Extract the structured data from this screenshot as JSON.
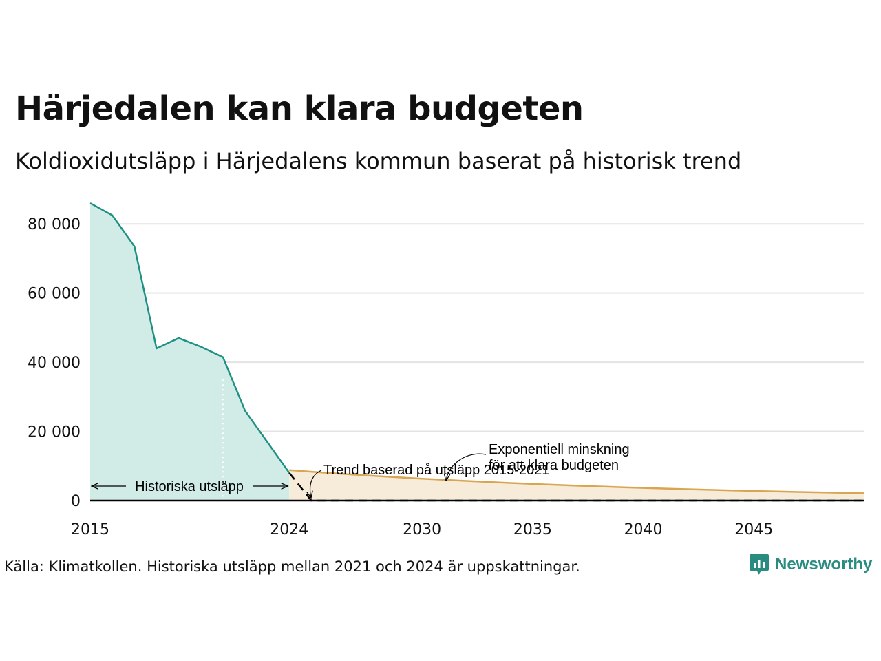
{
  "title": "Härjedalen kan klara budgeten",
  "subtitle": "Koldioxidutsläpp i Härjedalens kommun baserat på historisk trend",
  "source": "Källa: Klimatkollen. Historiska utsläpp mellan 2021 och 2024 är uppskattningar.",
  "brand": {
    "name": "Newsworthy",
    "icon": "newsworthy-logo-icon",
    "color": "#2a8c80"
  },
  "chart_data": {
    "type": "area",
    "xlim": [
      2015,
      2050
    ],
    "ylim": [
      0,
      90000
    ],
    "grid": true,
    "xticks": [
      {
        "value": 2015,
        "label": "2015"
      },
      {
        "value": 2024,
        "label": "2024"
      },
      {
        "value": 2030,
        "label": "2030"
      },
      {
        "value": 2035,
        "label": "2035"
      },
      {
        "value": 2040,
        "label": "2040"
      },
      {
        "value": 2045,
        "label": "2045"
      }
    ],
    "yticks": [
      {
        "value": 0,
        "label": "0"
      },
      {
        "value": 20000,
        "label": "20 000"
      },
      {
        "value": 40000,
        "label": "40 000"
      },
      {
        "value": 60000,
        "label": "60 000"
      },
      {
        "value": 80000,
        "label": "80 000"
      }
    ],
    "colors": {
      "historical_line": "#1f9084",
      "historical_fill": "#d1ebe6",
      "budget_line": "#d9a551",
      "budget_fill": "#f7ecda",
      "trend_line": "#000000",
      "grid": "#e3e3e3",
      "axis": "#000000",
      "divider": "#ffffff"
    },
    "series": [
      {
        "key": "historical",
        "x": [
          2015,
          2016,
          2017,
          2018,
          2019,
          2020,
          2021,
          2022,
          2023,
          2024
        ],
        "y": [
          86000,
          82500,
          73500,
          44000,
          47000,
          44500,
          41500,
          26000,
          17000,
          8000
        ]
      },
      {
        "key": "budget",
        "x": [
          2024,
          2025,
          2026,
          2027,
          2028,
          2029,
          2030,
          2031,
          2032,
          2033,
          2034,
          2035,
          2036,
          2037,
          2038,
          2039,
          2040,
          2041,
          2042,
          2043,
          2044,
          2045,
          2046,
          2047,
          2048,
          2049,
          2050
        ],
        "y": [
          8800,
          8330,
          7885,
          7465,
          7065,
          6690,
          6330,
          5995,
          5675,
          5370,
          5085,
          4810,
          4555,
          4310,
          4080,
          3865,
          3655,
          3460,
          3280,
          3105,
          2940,
          2780,
          2630,
          2490,
          2360,
          2235,
          2115
        ]
      },
      {
        "key": "trend",
        "x": [
          2024,
          2025,
          2050
        ],
        "y": [
          8000,
          0,
          0
        ]
      }
    ],
    "estimate_start_x": 2021,
    "annotations": {
      "historical": "Historiska utsläpp",
      "trend": "Trend baserad på utsläpp 2015-2021",
      "budget_line1": "Exponentiell minskning",
      "budget_line2": "för att klara budgeten"
    }
  }
}
